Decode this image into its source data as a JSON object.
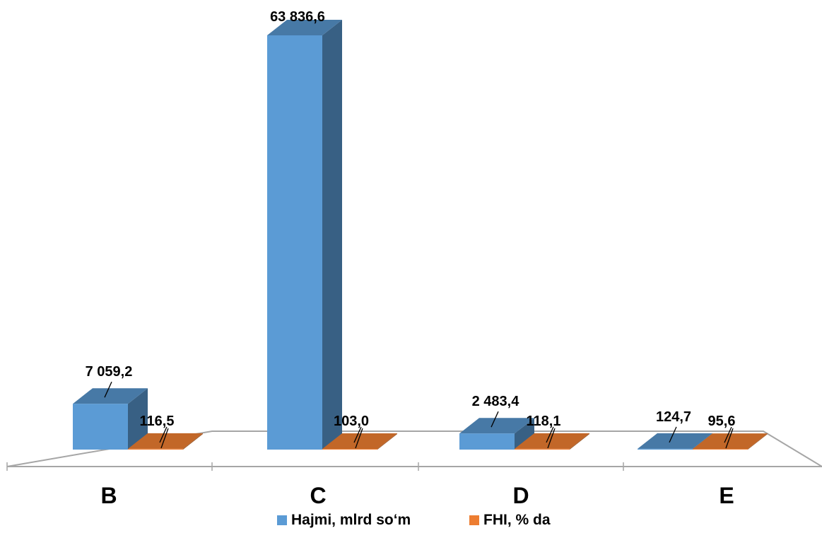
{
  "chart_data": {
    "type": "bar",
    "categories": [
      "B",
      "C",
      "D",
      "E"
    ],
    "series": [
      {
        "name": "Hajmi, mlrd so‘m",
        "color": "#5B9BD5",
        "values": [
          7059.2,
          63836.6,
          2483.4,
          124.7
        ],
        "labels": [
          "7 059,2",
          "63 836,6",
          "2 483,4",
          "124,7"
        ]
      },
      {
        "name": "FHI, % da",
        "color": "#ED7D31",
        "values": [
          116.5,
          103.0,
          118.1,
          95.6
        ],
        "labels": [
          "116,5",
          "103,0",
          "118,1",
          "95,6"
        ]
      }
    ],
    "legend": "bottom",
    "grid": false,
    "three_d": true
  }
}
